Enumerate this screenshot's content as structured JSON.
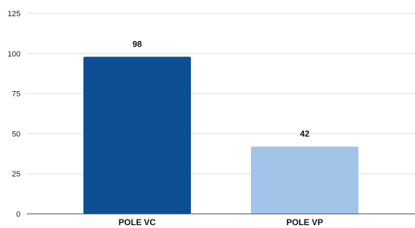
{
  "chart_data": {
    "type": "bar",
    "title": "",
    "xlabel": "",
    "ylabel": "",
    "categories": [
      "POLE VC",
      "POLE VP"
    ],
    "values": [
      98,
      42
    ],
    "data_labels": [
      "98",
      "42"
    ],
    "y_ticks": [
      0,
      25,
      50,
      75,
      100,
      125
    ],
    "ylim": [
      0,
      125
    ],
    "grid": true,
    "legend": "none",
    "colors": [
      "#0d4f92",
      "#a2c4e8"
    ]
  }
}
